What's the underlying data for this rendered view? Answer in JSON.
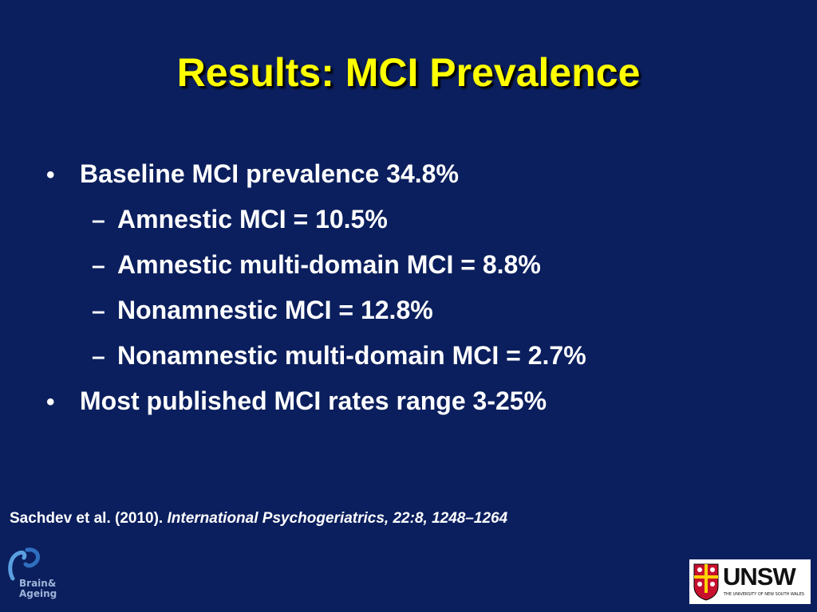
{
  "slide": {
    "title": "Results: MCI Prevalence",
    "bullets": [
      {
        "level": 1,
        "marker": "•",
        "text": "Baseline MCI prevalence 34.8%"
      },
      {
        "level": 2,
        "marker": "–",
        "text": "Amnestic MCI = 10.5%"
      },
      {
        "level": 2,
        "marker": "–",
        "text": "Amnestic multi-domain MCI = 8.8%"
      },
      {
        "level": 2,
        "marker": "–",
        "text": "Nonamnestic MCI = 12.8%"
      },
      {
        "level": 2,
        "marker": "–",
        "text": "Nonamnestic multi-domain MCI = 2.7%"
      },
      {
        "level": 1,
        "marker": "•",
        "text": "Most published MCI rates range 3-25%"
      }
    ],
    "citation": {
      "authors": "Sachdev et al. (2010).",
      "journal": "International Psychogeriatrics, 22:8, 1248–1264"
    }
  },
  "logos": {
    "brain_ageing": {
      "line1": "Brain&",
      "line2": "Ageing"
    },
    "unsw": {
      "word": "UNSW",
      "subtitle": "THE UNIVERSITY OF NEW SOUTH WALES"
    }
  },
  "colors": {
    "background": "#0b1f5e",
    "title": "#ffff00",
    "text": "#ffffff"
  }
}
